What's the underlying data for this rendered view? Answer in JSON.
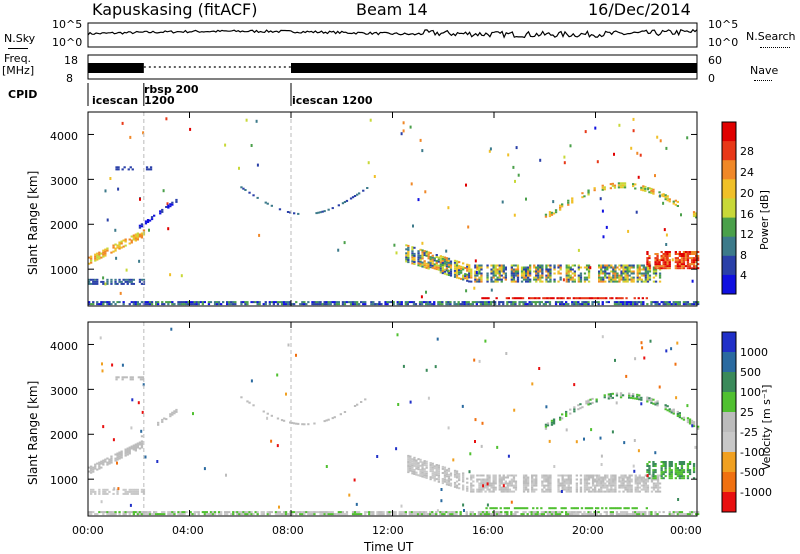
{
  "header": {
    "station": "Kapuskasing (fitACF)",
    "beam": "Beam 14",
    "date": "16/Dec/2014"
  },
  "top_panels": {
    "nsky_label": "N.Sky",
    "nsky_ticks": [
      "10^5",
      "10^0"
    ],
    "nsearch_label": "N.Search",
    "nsearch_ticks": [
      "10^5",
      "10^0"
    ],
    "freq_label": "Freq.",
    "freq_unit": "[MHz]",
    "freq_ticks": [
      "18",
      "8"
    ],
    "nave_label": "Nave",
    "nave_ticks": [
      "60",
      "0"
    ],
    "cpid_label": "CPID",
    "cpid_segments": [
      {
        "name": "icescan",
        "start": 0,
        "end": 1.5
      },
      {
        "name": "rbsp 200",
        "sub": "1200",
        "start": 1.5,
        "end": 8.0
      },
      {
        "name": "icescan 1200",
        "start": 8.0,
        "end": 24.0
      }
    ]
  },
  "chart_data": [
    {
      "type": "heatmap",
      "title": "",
      "ylabel": "Slant Range [km]",
      "xlabel": "",
      "x_range": [
        0,
        24
      ],
      "ylim": [
        180,
        4500
      ],
      "y_ticks": [
        "1000",
        "2000",
        "3000",
        "4000"
      ],
      "y_tick_values": [
        1000,
        2000,
        3000,
        4000
      ],
      "colorbar": {
        "label": "Power [dB]",
        "ticks": [
          "4",
          "8",
          "12",
          "16",
          "20",
          "24",
          "28"
        ],
        "colors": [
          "#1010e0",
          "#2a40a8",
          "#3c7a8a",
          "#4aa04a",
          "#c8d838",
          "#f0c028",
          "#f08828",
          "#e83818",
          "#e00000"
        ]
      }
    },
    {
      "type": "heatmap",
      "title": "",
      "ylabel": "Slant Range [km]",
      "xlabel": "Time UT",
      "x_range": [
        0,
        24
      ],
      "ylim": [
        180,
        4500
      ],
      "y_ticks": [
        "1000",
        "2000",
        "3000",
        "4000"
      ],
      "y_tick_values": [
        1000,
        2000,
        3000,
        4000
      ],
      "x_ticks": [
        "00:00",
        "04:00",
        "08:00",
        "12:00",
        "16:00",
        "20:00",
        "00:00"
      ],
      "x_tick_values": [
        0,
        4,
        8,
        12,
        16,
        20,
        24
      ],
      "colorbar": {
        "label": "Velocity [m s⁻¹]",
        "ticks": [
          "1000",
          "500",
          "100",
          "25",
          "-25",
          "-100",
          "-500",
          "-1000"
        ],
        "colors": [
          "#2030c8",
          "#2a6aa0",
          "#3a8a5a",
          "#50c030",
          "#bcbcbc",
          "#c8c8c8",
          "#f0a020",
          "#f07010",
          "#e81010"
        ]
      }
    }
  ]
}
